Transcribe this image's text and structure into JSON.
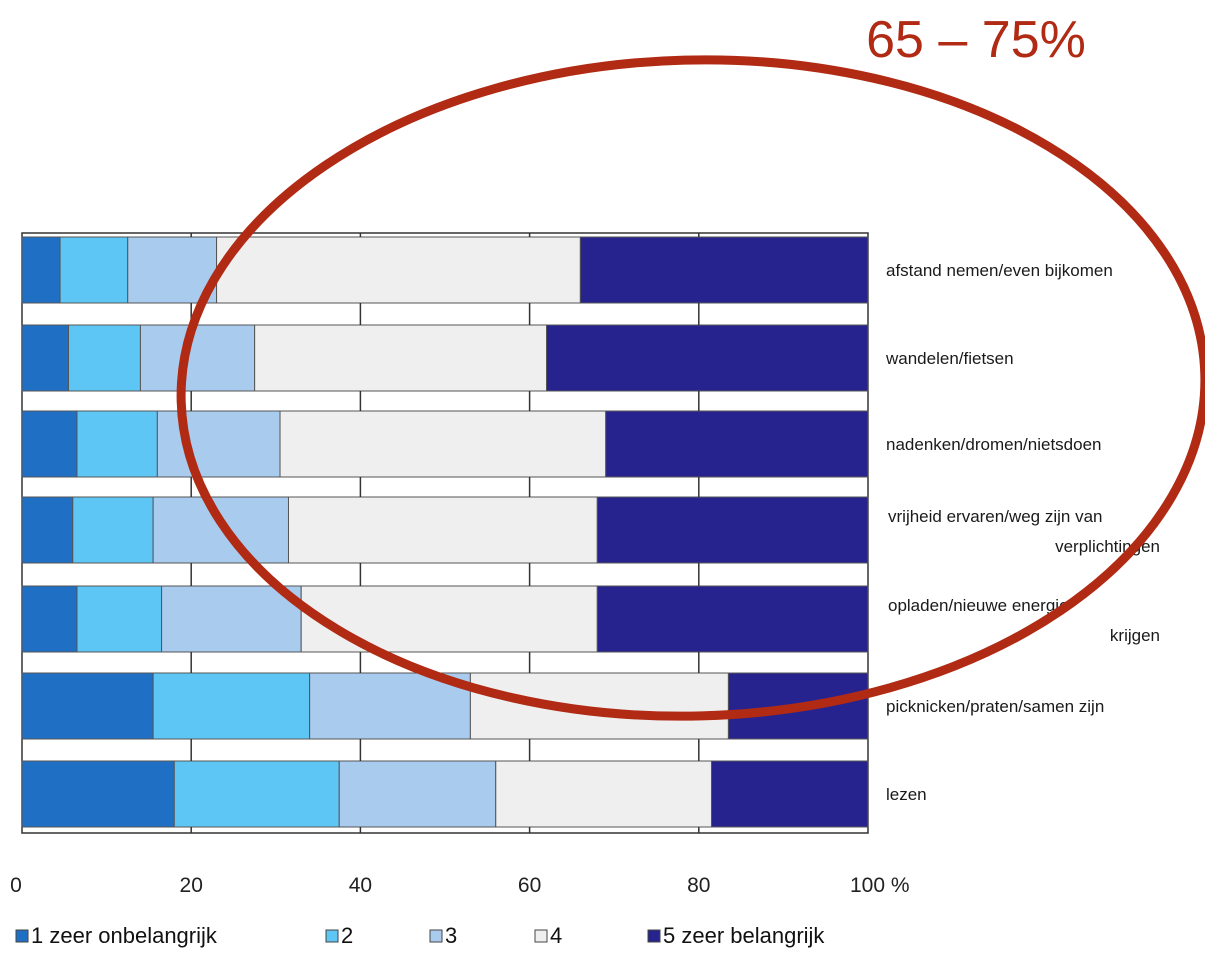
{
  "chart_data": {
    "type": "bar",
    "orientation": "horizontal",
    "stacked": true,
    "categories": [
      "afstand nemen/even bijkomen",
      "wandelen/fietsen",
      "nadenken/dromen/nietsdoen",
      "vrijheid ervaren/weg zijn van verplichtingen",
      "opladen/nieuwe energie krijgen",
      "picknicken/praten/samen zijn",
      "lezen"
    ],
    "category_lines": [
      [
        "afstand nemen/even bijkomen"
      ],
      [
        "wandelen/fietsen"
      ],
      [
        "nadenken/dromen/nietsdoen"
      ],
      [
        "vrijheid ervaren/weg zijn van",
        "verplichtingen"
      ],
      [
        "opladen/nieuwe energie",
        "krijgen"
      ],
      [
        "picknicken/praten/samen zijn"
      ],
      [
        "lezen"
      ]
    ],
    "series": [
      {
        "name": "1 zeer onbelangrijk",
        "color": "#1f6fc4",
        "values": [
          4.5,
          5.5,
          6.5,
          6,
          6.5,
          15.5,
          18
        ]
      },
      {
        "name": "2",
        "color": "#5ec6f5",
        "values": [
          8,
          8.5,
          9.5,
          9.5,
          10,
          18.5,
          19.5
        ]
      },
      {
        "name": "3",
        "color": "#a9cbee",
        "values": [
          10.5,
          13.5,
          14.5,
          16,
          16.5,
          19,
          18.5
        ]
      },
      {
        "name": "4",
        "color": "#efefef",
        "values": [
          43,
          34.5,
          38.5,
          36.5,
          35,
          30.5,
          25.5
        ]
      },
      {
        "name": "5 zeer belangrijk",
        "color": "#26238e",
        "values": [
          34,
          38,
          31,
          32,
          32,
          16.5,
          18.5
        ]
      }
    ],
    "xlim": [
      0,
      100
    ],
    "x_ticks": [
      0,
      20,
      40,
      60,
      80,
      100
    ],
    "x_tick_labels": [
      "0",
      "20",
      "40",
      "60",
      "80",
      "100 %"
    ],
    "grid": true,
    "legend_position": "bottom",
    "annotation": {
      "text": "65 – 75%",
      "color": "#b02a14",
      "shape": "ellipse"
    }
  }
}
